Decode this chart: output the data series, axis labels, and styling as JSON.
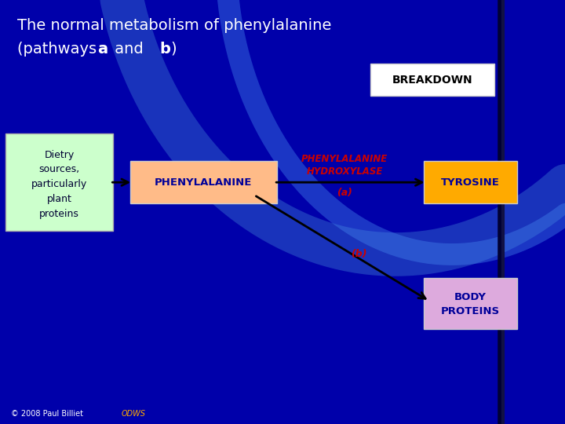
{
  "title_line1": "The normal metabolism of phenylalanine",
  "title_line2": "(pathways ",
  "title_bold_a": "a",
  "title_middle": " and ",
  "title_bold_b": "b",
  "title_end": ")",
  "bg_color": "#0000aa",
  "title_color": "#ffffff",
  "breakdown_box_color": "#ffffff",
  "breakdown_text_color": "#000000",
  "dietry_box_color": "#ccffcc",
  "dietry_text_color": "#000033",
  "phe_box_color": "#ffbb88",
  "phe_text_color": "#000099",
  "enzyme_text_color": "#cc0000",
  "tyrosine_box_color": "#ffaa00",
  "tyrosine_text_color": "#000099",
  "body_box_color": "#ddaadd",
  "body_text_color": "#000099",
  "arrow_color": "#000000",
  "label_a_color": "#cc0000",
  "label_b_color": "#cc0000",
  "footer_text": "© 2008 Paul Billiet ODWS",
  "footer_link_color": "#ffaa00",
  "footer_color": "#ffffff"
}
